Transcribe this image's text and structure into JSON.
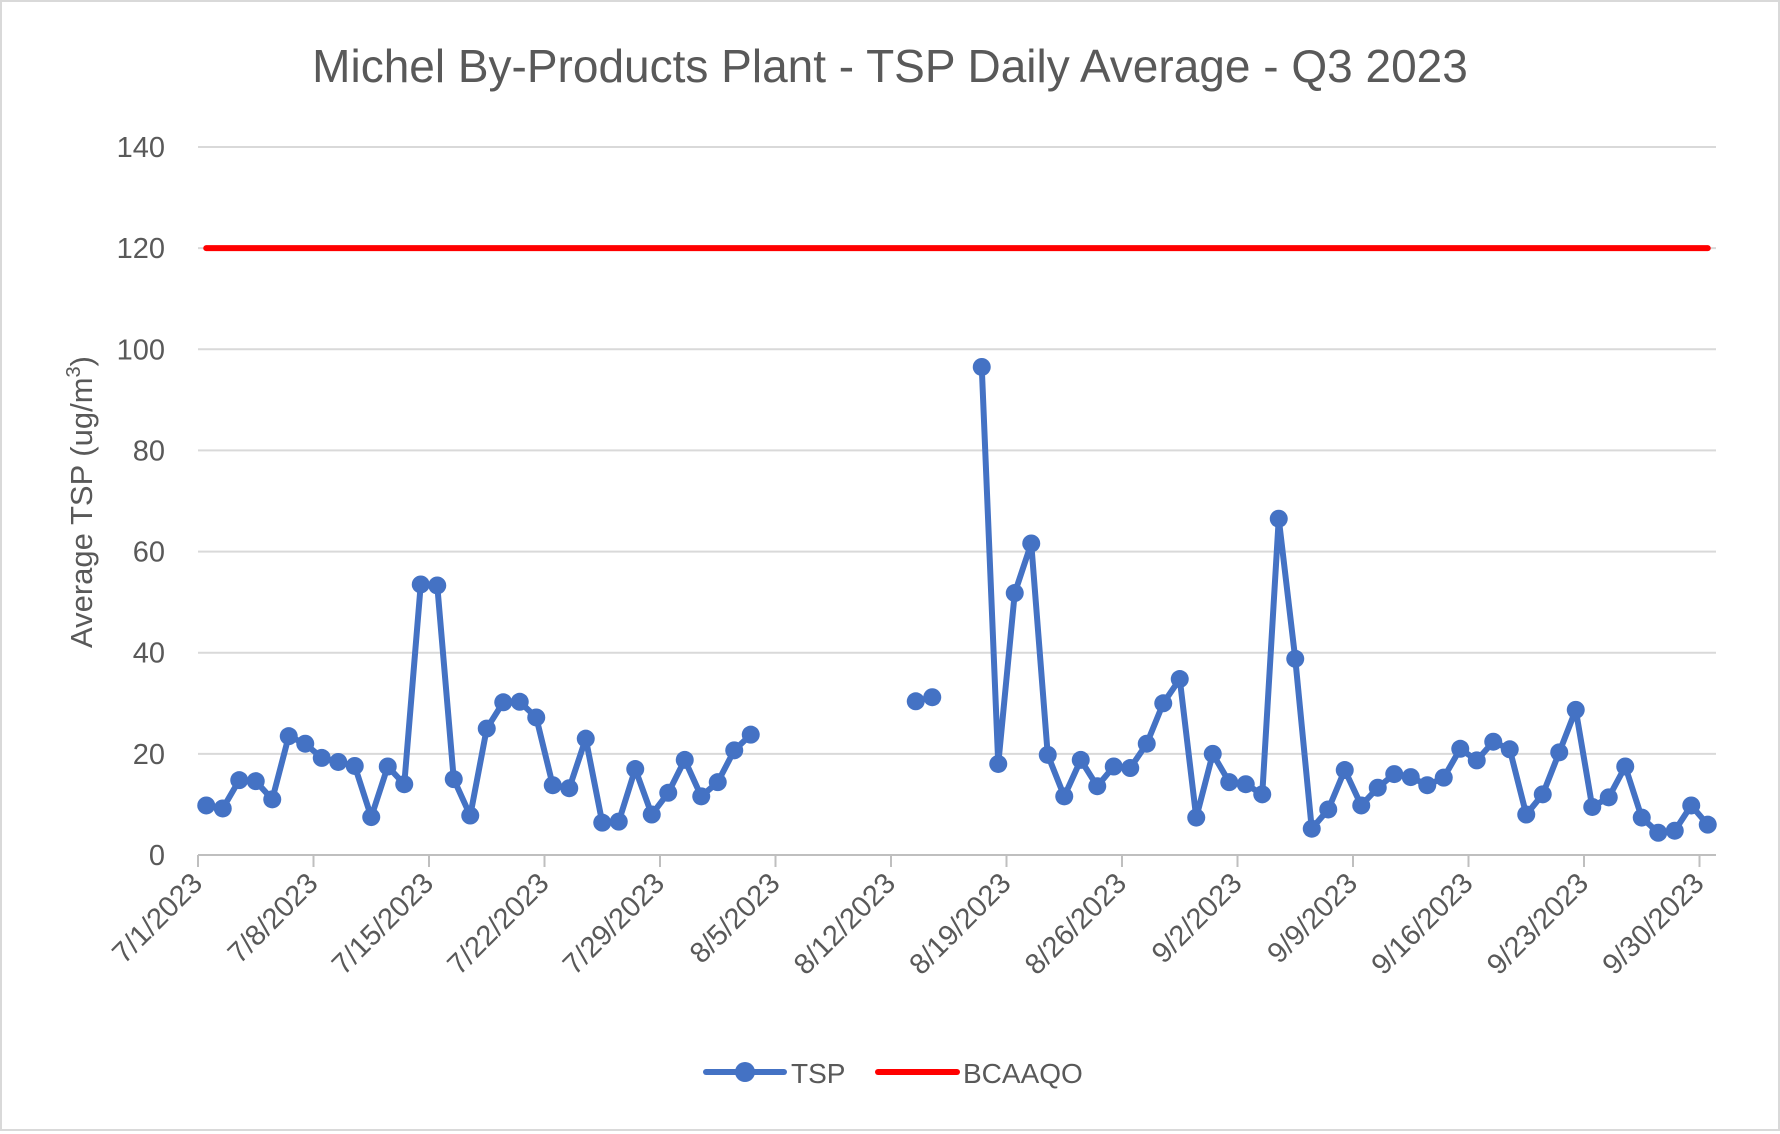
{
  "chart_data": {
    "type": "line",
    "title": "Michel By-Products Plant - TSP Daily Average - Q3 2023",
    "xlabel": "",
    "ylabel": "Average TSP (ug/m",
    "ylabel_sup": "3",
    "ylabel_close": ")",
    "ylim": [
      0,
      140
    ],
    "yticks": [
      "0",
      "20",
      "40",
      "60",
      "80",
      "100",
      "120",
      "140"
    ],
    "x_start": "7/1/2023",
    "x_end": "9/30/2023",
    "xticks": [
      "7/1/2023",
      "7/8/2023",
      "7/15/2023",
      "7/22/2023",
      "7/29/2023",
      "8/5/2023",
      "8/12/2023",
      "8/19/2023",
      "8/26/2023",
      "9/2/2023",
      "9/9/2023",
      "9/16/2023",
      "9/23/2023",
      "9/30/2023"
    ],
    "grid": true,
    "legend_position": "bottom",
    "series": [
      {
        "name": "TSP",
        "color": "#4472C4",
        "marker": "circle",
        "points": [
          [
            "7/1/2023",
            9.8
          ],
          [
            "7/2/2023",
            9.2
          ],
          [
            "7/3/2023",
            14.8
          ],
          [
            "7/4/2023",
            14.6
          ],
          [
            "7/5/2023",
            11.0
          ],
          [
            "7/6/2023",
            23.5
          ],
          [
            "7/7/2023",
            22.0
          ],
          [
            "7/8/2023",
            19.2
          ],
          [
            "7/9/2023",
            18.4
          ],
          [
            "7/10/2023",
            17.6
          ],
          [
            "7/11/2023",
            7.5
          ],
          [
            "7/12/2023",
            17.5
          ],
          [
            "7/13/2023",
            14.0
          ],
          [
            "7/14/2023",
            53.5
          ],
          [
            "7/15/2023",
            53.3
          ],
          [
            "7/16/2023",
            15.0
          ],
          [
            "7/17/2023",
            7.8
          ],
          [
            "7/18/2023",
            25.0
          ],
          [
            "7/19/2023",
            30.2
          ],
          [
            "7/20/2023",
            30.3
          ],
          [
            "7/21/2023",
            27.2
          ],
          [
            "7/22/2023",
            13.8
          ],
          [
            "7/23/2023",
            13.2
          ],
          [
            "7/24/2023",
            23.0
          ],
          [
            "7/25/2023",
            6.4
          ],
          [
            "7/26/2023",
            6.6
          ],
          [
            "7/27/2023",
            17.0
          ],
          [
            "7/28/2023",
            8.0
          ],
          [
            "7/29/2023",
            12.3
          ],
          [
            "7/30/2023",
            18.8
          ],
          [
            "7/31/2023",
            11.6
          ],
          [
            "8/1/2023",
            14.4
          ],
          [
            "8/2/2023",
            20.7
          ],
          [
            "8/3/2023",
            23.8
          ],
          [
            "8/4/2023",
            null
          ],
          [
            "8/5/2023",
            null
          ],
          [
            "8/6/2023",
            null
          ],
          [
            "8/7/2023",
            null
          ],
          [
            "8/8/2023",
            null
          ],
          [
            "8/9/2023",
            null
          ],
          [
            "8/10/2023",
            null
          ],
          [
            "8/11/2023",
            null
          ],
          [
            "8/12/2023",
            null
          ],
          [
            "8/13/2023",
            30.4
          ],
          [
            "8/14/2023",
            31.2
          ],
          [
            "8/15/2023",
            null
          ],
          [
            "8/16/2023",
            null
          ],
          [
            "8/17/2023",
            96.5
          ],
          [
            "8/18/2023",
            18.0
          ],
          [
            "8/19/2023",
            51.8
          ],
          [
            "8/20/2023",
            61.6
          ],
          [
            "8/21/2023",
            19.8
          ],
          [
            "8/22/2023",
            11.6
          ],
          [
            "8/23/2023",
            18.8
          ],
          [
            "8/24/2023",
            13.6
          ],
          [
            "8/25/2023",
            17.5
          ],
          [
            "8/26/2023",
            17.2
          ],
          [
            "8/27/2023",
            22.0
          ],
          [
            "8/28/2023",
            30.0
          ],
          [
            "8/29/2023",
            34.8
          ],
          [
            "8/30/2023",
            7.4
          ],
          [
            "8/31/2023",
            20.0
          ],
          [
            "9/1/2023",
            14.4
          ],
          [
            "9/2/2023",
            14.0
          ],
          [
            "9/3/2023",
            12.0
          ],
          [
            "9/4/2023",
            66.5
          ],
          [
            "9/5/2023",
            38.8
          ],
          [
            "9/6/2023",
            5.2
          ],
          [
            "9/7/2023",
            9.0
          ],
          [
            "9/8/2023",
            16.8
          ],
          [
            "9/9/2023",
            9.8
          ],
          [
            "9/10/2023",
            13.3
          ],
          [
            "9/11/2023",
            16.0
          ],
          [
            "9/12/2023",
            15.4
          ],
          [
            "9/13/2023",
            13.8
          ],
          [
            "9/14/2023",
            15.3
          ],
          [
            "9/15/2023",
            21.0
          ],
          [
            "9/16/2023",
            18.7
          ],
          [
            "9/17/2023",
            22.4
          ],
          [
            "9/18/2023",
            20.9
          ],
          [
            "9/19/2023",
            8.0
          ],
          [
            "9/20/2023",
            12.0
          ],
          [
            "9/21/2023",
            20.3
          ],
          [
            "9/22/2023",
            28.7
          ],
          [
            "9/23/2023",
            9.5
          ],
          [
            "9/24/2023",
            11.4
          ],
          [
            "9/25/2023",
            17.5
          ],
          [
            "9/26/2023",
            7.4
          ],
          [
            "9/27/2023",
            4.4
          ],
          [
            "9/28/2023",
            4.8
          ],
          [
            "9/29/2023",
            9.8
          ],
          [
            "9/30/2023",
            6.0
          ]
        ]
      },
      {
        "name": "BCAAQO",
        "color": "#FF0000",
        "marker": "none",
        "points": [
          [
            "7/1/2023",
            120
          ],
          [
            "9/30/2023",
            120
          ]
        ]
      }
    ]
  }
}
